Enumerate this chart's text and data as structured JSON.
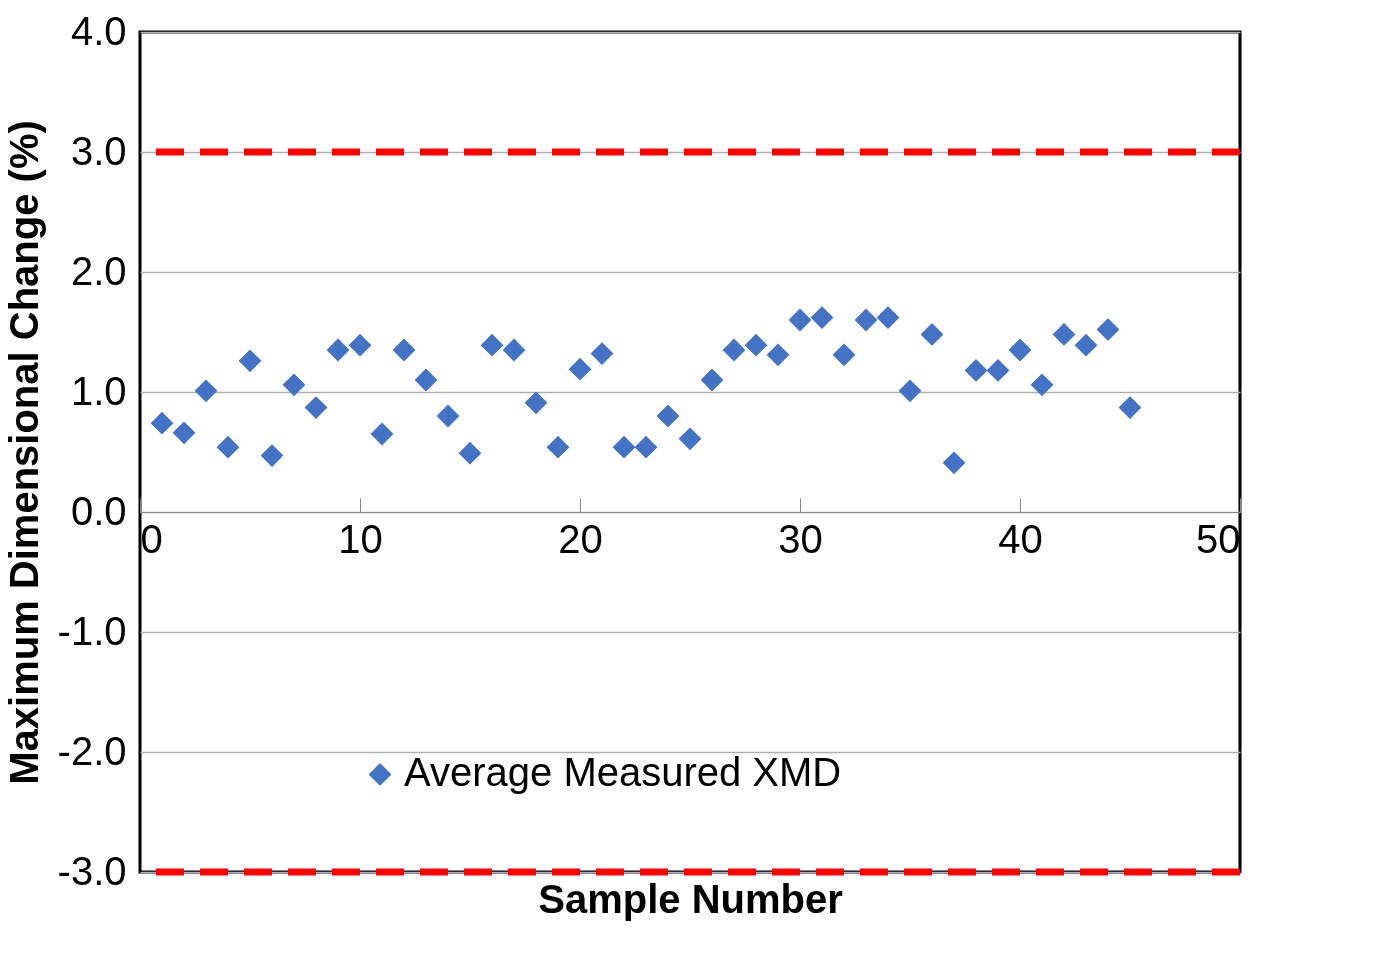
{
  "chart_data": {
    "type": "scatter",
    "xlabel": "Sample Number",
    "ylabel": "Maximum Dimensional Change (%)",
    "x": [
      1,
      2,
      3,
      4,
      5,
      6,
      7,
      8,
      9,
      10,
      11,
      12,
      13,
      14,
      15,
      16,
      17,
      18,
      19,
      20,
      21,
      22,
      23,
      24,
      25,
      26,
      27,
      28,
      29,
      30,
      31,
      32,
      33,
      34,
      35,
      36,
      37,
      38,
      39,
      40,
      41,
      42,
      43,
      44,
      45
    ],
    "series": [
      {
        "name": "Average Measured XMD",
        "color": "#4472c4",
        "values": [
          0.74,
          0.66,
          1.01,
          0.54,
          1.26,
          0.47,
          1.06,
          0.87,
          1.35,
          1.39,
          0.65,
          1.35,
          1.1,
          0.8,
          0.49,
          1.39,
          1.35,
          0.91,
          0.54,
          1.19,
          1.32,
          0.54,
          0.54,
          0.8,
          0.61,
          1.1,
          1.35,
          1.39,
          1.31,
          1.6,
          1.62,
          1.31,
          1.6,
          1.62,
          1.01,
          1.48,
          0.41,
          1.18,
          1.18,
          1.35,
          1.06,
          1.48,
          1.39,
          1.52,
          0.87
        ]
      }
    ],
    "xlim": [
      0,
      50
    ],
    "xticks": [
      0,
      10,
      20,
      30,
      40,
      50
    ],
    "ylim": [
      -3,
      4
    ],
    "yticks": [
      {
        "value": -3,
        "label": "-3.0"
      },
      {
        "value": -2,
        "label": "-2.0"
      },
      {
        "value": -1,
        "label": "-1.0"
      },
      {
        "value": 0,
        "label": "0.0"
      },
      {
        "value": 1,
        "label": "1.0"
      },
      {
        "value": 2,
        "label": "2.0"
      },
      {
        "value": 3,
        "label": "3.0"
      },
      {
        "value": 4,
        "label": "4.0"
      }
    ],
    "ref_lines": [
      {
        "axis": "y",
        "value": 3,
        "color": "#ff0000",
        "line_style": "dashed"
      },
      {
        "axis": "y",
        "value": -3,
        "color": "#ff0000",
        "line_style": "dashed"
      }
    ],
    "grid": "y",
    "legend": "bottom",
    "marker": "diamond"
  }
}
